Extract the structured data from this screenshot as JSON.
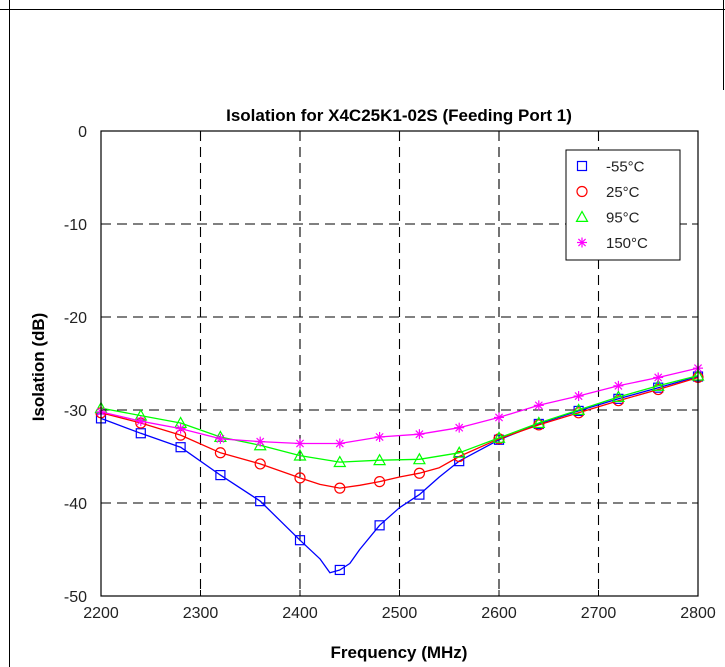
{
  "chart_data": {
    "type": "line",
    "title": "Isolation for X4C25K1-02S (Feeding Port 1)",
    "xlabel": "Frequency (MHz)",
    "ylabel": "Isolation (dB)",
    "xlim": [
      2200,
      2800
    ],
    "ylim": [
      -50,
      0
    ],
    "xticks": [
      2200,
      2300,
      2400,
      2500,
      2600,
      2700,
      2800
    ],
    "yticks": [
      0,
      -10,
      -20,
      -30,
      -40,
      -50
    ],
    "grid": true,
    "legend_position": "top-right",
    "series": [
      {
        "name": "-55°C",
        "color": "#0000ff",
        "marker": "square",
        "x": [
          2200,
          2240,
          2280,
          2320,
          2360,
          2400,
          2420,
          2430,
          2440,
          2450,
          2460,
          2480,
          2500,
          2520,
          2540,
          2560,
          2600,
          2640,
          2680,
          2720,
          2760,
          2800
        ],
        "y": [
          -30.9,
          -32.5,
          -34.0,
          -37.0,
          -39.8,
          -44.0,
          -46.0,
          -47.5,
          -47.2,
          -46.5,
          -45.0,
          -42.4,
          -40.5,
          -39.1,
          -37.2,
          -35.5,
          -33.2,
          -31.5,
          -30.1,
          -28.8,
          -27.6,
          -26.4
        ],
        "marker_x": [
          2200,
          2240,
          2280,
          2320,
          2360,
          2400,
          2440,
          2480,
          2520,
          2560,
          2600,
          2640,
          2680,
          2720,
          2760,
          2800
        ]
      },
      {
        "name": "25°C",
        "color": "#ff0000",
        "marker": "circle",
        "x": [
          2200,
          2240,
          2280,
          2320,
          2360,
          2400,
          2420,
          2440,
          2460,
          2480,
          2500,
          2520,
          2540,
          2560,
          2600,
          2640,
          2680,
          2720,
          2760,
          2800
        ],
        "y": [
          -30.3,
          -31.4,
          -32.7,
          -34.6,
          -35.8,
          -37.3,
          -38.0,
          -38.4,
          -38.1,
          -37.7,
          -37.2,
          -36.8,
          -36.2,
          -35.0,
          -33.1,
          -31.6,
          -30.3,
          -29.0,
          -27.8,
          -26.5
        ],
        "marker_x": [
          2200,
          2240,
          2280,
          2320,
          2360,
          2400,
          2440,
          2480,
          2520,
          2560,
          2600,
          2640,
          2680,
          2720,
          2760,
          2800
        ]
      },
      {
        "name": "95°C",
        "color": "#00ff00",
        "marker": "triangle",
        "x": [
          2200,
          2240,
          2280,
          2320,
          2360,
          2400,
          2440,
          2480,
          2520,
          2560,
          2600,
          2640,
          2680,
          2720,
          2760,
          2800
        ],
        "y": [
          -29.8,
          -30.6,
          -31.4,
          -32.9,
          -33.8,
          -34.9,
          -35.6,
          -35.4,
          -35.3,
          -34.6,
          -33.0,
          -31.4,
          -30.0,
          -28.6,
          -27.4,
          -26.3
        ],
        "marker_x": [
          2200,
          2240,
          2280,
          2320,
          2360,
          2400,
          2440,
          2480,
          2520,
          2560,
          2600,
          2640,
          2680,
          2720,
          2760,
          2800
        ]
      },
      {
        "name": "150°C",
        "color": "#ff00ff",
        "marker": "asterisk",
        "x": [
          2200,
          2240,
          2280,
          2320,
          2360,
          2400,
          2440,
          2480,
          2520,
          2560,
          2600,
          2640,
          2680,
          2720,
          2760,
          2800
        ],
        "y": [
          -30.2,
          -31.2,
          -32.0,
          -33.1,
          -33.4,
          -33.6,
          -33.6,
          -32.9,
          -32.6,
          -31.9,
          -30.8,
          -29.5,
          -28.5,
          -27.4,
          -26.5,
          -25.5
        ],
        "marker_x": [
          2200,
          2240,
          2280,
          2320,
          2360,
          2400,
          2440,
          2480,
          2520,
          2560,
          2600,
          2640,
          2680,
          2720,
          2760,
          2800
        ]
      }
    ]
  }
}
